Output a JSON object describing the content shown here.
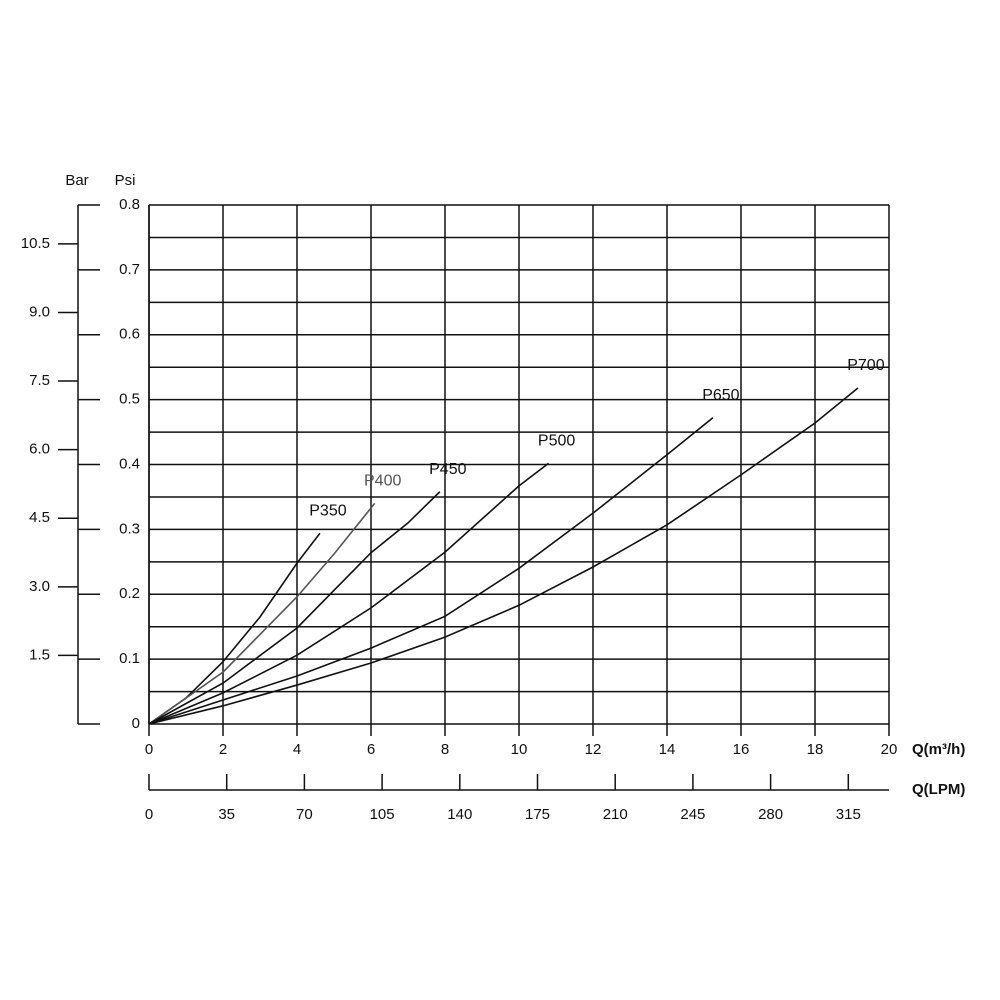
{
  "chart_data": {
    "type": "line",
    "x_label": "Q(m³/h)",
    "x2_label": "Q(LPM)",
    "y_label": "Psi",
    "y2_label": "Bar",
    "xlim": [
      0,
      20
    ],
    "xticks": [
      0,
      2,
      4,
      6,
      8,
      10,
      12,
      14,
      16,
      18,
      20
    ],
    "x2lim": [
      0,
      333.33
    ],
    "x2ticks": [
      0,
      35,
      70,
      105,
      140,
      175,
      210,
      245,
      280,
      315
    ],
    "ylim": [
      0,
      0.8
    ],
    "yticks": [
      0,
      0.1,
      0.2,
      0.3,
      0.4,
      0.5,
      0.6,
      0.7,
      0.8
    ],
    "yminor": [
      0.05,
      0.15,
      0.25,
      0.35,
      0.45,
      0.55,
      0.65,
      0.75
    ],
    "y2lim": [
      0,
      11.35
    ],
    "y2ticks": [
      1.5,
      {
        "value": 3,
        "label": "3.0"
      },
      4.5,
      {
        "value": 6,
        "label": "6.0"
      },
      7.5,
      {
        "value": 9,
        "label": "9.0"
      },
      10.5
    ],
    "grid": true,
    "series": [
      {
        "name": "P350",
        "color": "#111111",
        "x": [
          0,
          1,
          2,
          3,
          4,
          4.62
        ],
        "values": [
          0,
          0.04,
          0.096,
          0.165,
          0.248,
          0.294
        ]
      },
      {
        "name": "P400",
        "color": "#555555",
        "x": [
          0,
          2,
          4,
          5,
          6.1
        ],
        "values": [
          0,
          0.08,
          0.196,
          0.262,
          0.34
        ]
      },
      {
        "name": "P450",
        "color": "#111111",
        "x": [
          0,
          2,
          4,
          6,
          7,
          7.86
        ],
        "values": [
          0,
          0.063,
          0.148,
          0.264,
          0.31,
          0.358
        ]
      },
      {
        "name": "P500",
        "color": "#111111",
        "x": [
          0,
          2,
          4,
          6,
          8,
          10,
          10.8
        ],
        "values": [
          0,
          0.048,
          0.106,
          0.179,
          0.265,
          0.367,
          0.402
        ]
      },
      {
        "name": "P650",
        "color": "#111111",
        "x": [
          0,
          2,
          4,
          6,
          8,
          10,
          12,
          14,
          15.24
        ],
        "values": [
          0,
          0.037,
          0.074,
          0.117,
          0.166,
          0.24,
          0.325,
          0.415,
          0.472
        ]
      },
      {
        "name": "P700",
        "color": "#111111",
        "x": [
          0,
          2,
          4,
          6,
          8,
          10,
          12,
          14,
          16,
          18,
          19.16
        ],
        "values": [
          0,
          0.028,
          0.06,
          0.094,
          0.134,
          0.183,
          0.242,
          0.307,
          0.384,
          0.464,
          0.518
        ]
      }
    ]
  }
}
